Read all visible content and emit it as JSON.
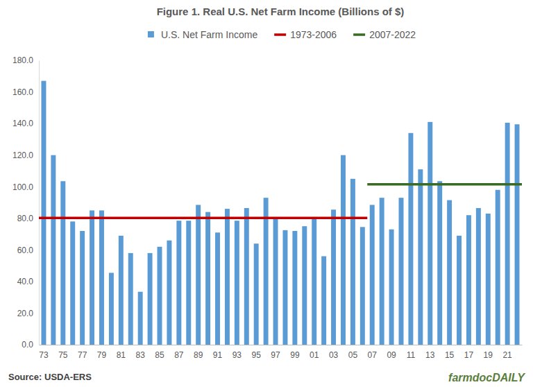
{
  "chart_data": {
    "type": "bar",
    "title": "Figure 1. Real U.S. Net Farm Income (Billions of $)",
    "categories": [
      "73",
      null,
      "75",
      null,
      "77",
      null,
      "79",
      null,
      "81",
      null,
      "83",
      null,
      "85",
      null,
      "87",
      null,
      "89",
      null,
      "91",
      null,
      "93",
      null,
      "95",
      null,
      "97",
      null,
      "99",
      null,
      "01",
      null,
      "03",
      null,
      "05",
      null,
      "07",
      null,
      "09",
      null,
      "11",
      null,
      "13",
      null,
      "15",
      null,
      "17",
      null,
      "19",
      null,
      "21",
      null
    ],
    "series": [
      {
        "name": "U.S. Net Farm Income",
        "type": "bar",
        "color": "#5B9BD5",
        "values": [
          167,
          120,
          103.5,
          78,
          72,
          85,
          85,
          45.5,
          69,
          58,
          33.5,
          58,
          62,
          66,
          78.5,
          78.5,
          88.5,
          84,
          71,
          86,
          78.5,
          86.5,
          64,
          93,
          80,
          72.5,
          72,
          75,
          80,
          56,
          85.5,
          120,
          105,
          74.5,
          88.5,
          93,
          73,
          93,
          134,
          111,
          141,
          103.5,
          91.5,
          69,
          82,
          86.5,
          83,
          98,
          140.5,
          139.5
        ]
      },
      {
        "name": "1973-2006",
        "type": "line",
        "color": "#C00000",
        "values": [
          80.2,
          80.2,
          80.2,
          80.2,
          80.2,
          80.2,
          80.2,
          80.2,
          80.2,
          80.2,
          80.2,
          80.2,
          80.2,
          80.2,
          80.2,
          80.2,
          80.2,
          80.2,
          80.2,
          80.2,
          80.2,
          80.2,
          80.2,
          80.2,
          80.2,
          80.2,
          80.2,
          80.2,
          80.2,
          80.2,
          80.2,
          80.2,
          80.2,
          80.2,
          null,
          null,
          null,
          null,
          null,
          null,
          null,
          null,
          null,
          null,
          null,
          null,
          null,
          null,
          null,
          null
        ]
      },
      {
        "name": "2007-2022",
        "type": "line",
        "color": "#3A6B22",
        "values": [
          null,
          null,
          null,
          null,
          null,
          null,
          null,
          null,
          null,
          null,
          null,
          null,
          null,
          null,
          null,
          null,
          null,
          null,
          null,
          null,
          null,
          null,
          null,
          null,
          null,
          null,
          null,
          null,
          null,
          null,
          null,
          null,
          null,
          null,
          101.5,
          101.5,
          101.5,
          101.5,
          101.5,
          101.5,
          101.5,
          101.5,
          101.5,
          101.5,
          101.5,
          101.5,
          101.5,
          101.5,
          101.5,
          101.5
        ]
      }
    ],
    "ylim": [
      0,
      180
    ],
    "yticks": [
      {
        "value": 0,
        "label": "0.0"
      },
      {
        "value": 20,
        "label": "20.0"
      },
      {
        "value": 40,
        "label": "40.0"
      },
      {
        "value": 60,
        "label": "60.0"
      },
      {
        "value": 80,
        "label": "80.0"
      },
      {
        "value": 100,
        "label": "100.0"
      },
      {
        "value": 120,
        "label": "120.0"
      },
      {
        "value": 140,
        "label": "140.0"
      },
      {
        "value": 160,
        "label": "160.0"
      },
      {
        "value": 180,
        "label": "180.0"
      }
    ],
    "grid": false,
    "legend": "top",
    "annotations": [
      "Source: USDA-ERS",
      "farmdocDAILY"
    ]
  }
}
